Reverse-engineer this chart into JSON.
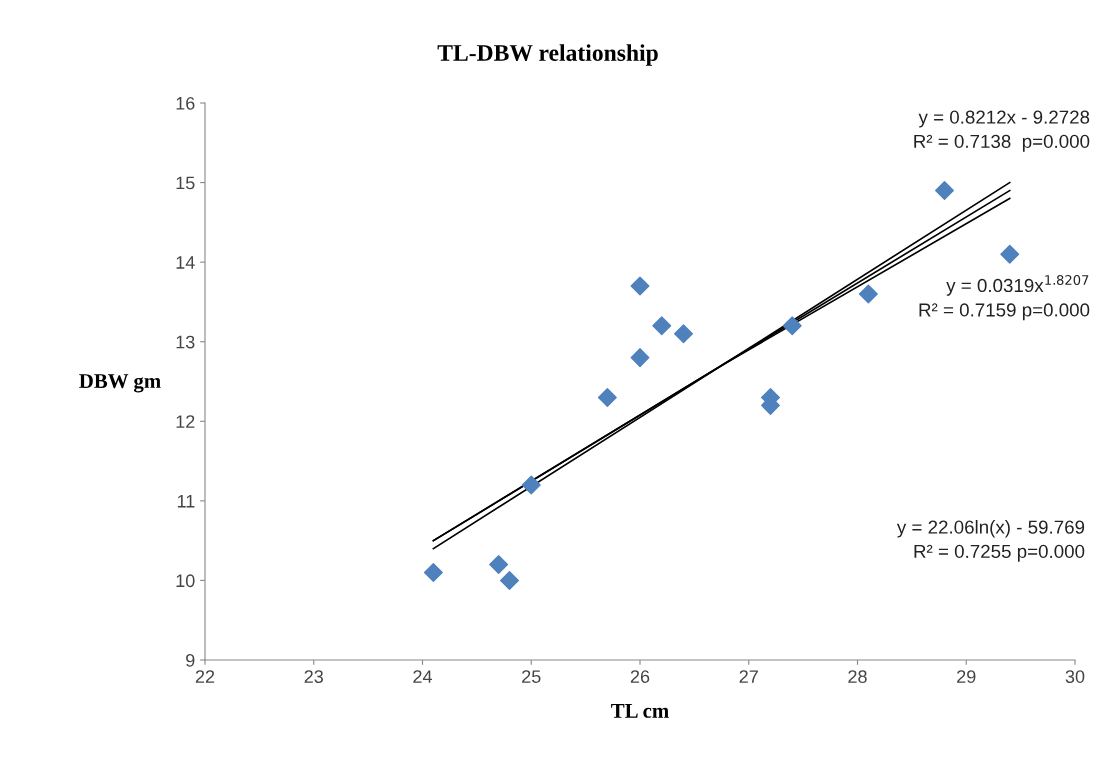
{
  "chart_data": {
    "type": "scatter",
    "title": "TL-DBW relationship",
    "xlabel": "TL cm",
    "ylabel": "DBW gm",
    "xlim": [
      22,
      30
    ],
    "xticks": [
      22,
      23,
      24,
      25,
      26,
      27,
      28,
      29,
      30
    ],
    "ylim": [
      9,
      16
    ],
    "yticks": [
      9,
      10,
      11,
      12,
      13,
      14,
      15,
      16
    ],
    "grid": false,
    "legend": false,
    "series": [
      {
        "marker": "diamond",
        "color": "#4f81bd",
        "x": [
          24.1,
          24.7,
          24.8,
          25.0,
          25.7,
          26.0,
          26.0,
          26.2,
          26.4,
          27.2,
          27.2,
          27.4,
          28.1,
          28.8,
          29.4
        ],
        "values": [
          10.1,
          10.2,
          10.0,
          11.2,
          12.3,
          13.7,
          12.8,
          13.2,
          13.1,
          12.3,
          12.2,
          13.2,
          13.6,
          14.9,
          14.1
        ]
      },
      {
        "type": "line",
        "color": "#000000",
        "x": [
          24.1,
          26.75,
          29.4
        ],
        "values": [
          10.5,
          12.7,
          14.9
        ]
      },
      {
        "type": "line",
        "color": "#000000",
        "x": [
          24.1,
          26.75,
          29.4
        ],
        "values": [
          10.5,
          12.7,
          15.0
        ]
      },
      {
        "type": "line",
        "color": "#000000",
        "x": [
          24.1,
          26.75,
          29.4
        ],
        "values": [
          10.4,
          12.7,
          14.8
        ]
      }
    ],
    "annotations": [
      "y = 0.8212x - 9.2728\nR² = 0.7138  p=0.000",
      "y = 0.0319x$^{1.8207}$\nR² = 0.7159 p=0.000",
      "y = 22.06ln(x) - 59.769\nR² = 0.7255 p=0.000"
    ]
  }
}
